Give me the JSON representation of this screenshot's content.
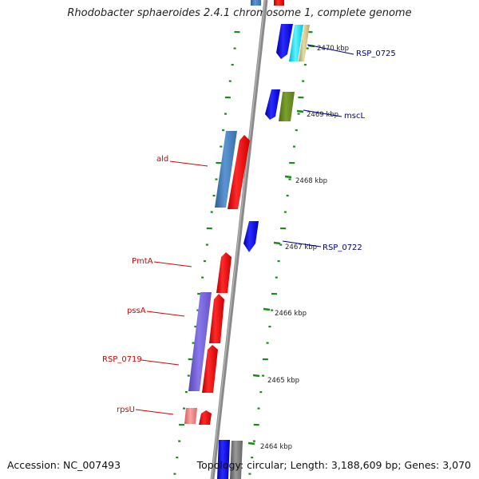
{
  "title": "Rhodobacter sphaeroides 2.4.1 chromosome 1, complete genome",
  "footer": {
    "accession": "Accession: NC_007493",
    "topology": "Topology: circular; Length: 3,188,609 bp; Genes: 3,070"
  },
  "ticks": [
    {
      "label": "2470 kbp"
    },
    {
      "label": "2469 kbp"
    },
    {
      "label": "2468 kbp"
    },
    {
      "label": "2467 kbp"
    },
    {
      "label": "2466 kbp"
    },
    {
      "label": "2465 kbp"
    },
    {
      "label": "2464 kbp"
    }
  ],
  "gene_labels_left": [
    {
      "name": "ald"
    },
    {
      "name": "PmtA"
    },
    {
      "name": "pssA"
    },
    {
      "name": "RSP_0719"
    },
    {
      "name": "rpsU"
    }
  ],
  "gene_labels_right": [
    {
      "name": "RSP_0725"
    },
    {
      "name": "mscL"
    },
    {
      "name": "RSP_0722"
    }
  ],
  "colors": {
    "backbone": "#8c8c8c",
    "gc_marks": "#1a8a1a",
    "red_gene": "#ff0000",
    "blue_gene": "#0000ff",
    "steelblue_gene": "#4f86c6",
    "purple_gene": "#7b68dd",
    "olive_gene": "#6b8e23",
    "cyan_gene": "#00e5ff",
    "tan_gene": "#d2c48c",
    "pink_gene": "#f08080",
    "gray_gene": "#808080"
  }
}
